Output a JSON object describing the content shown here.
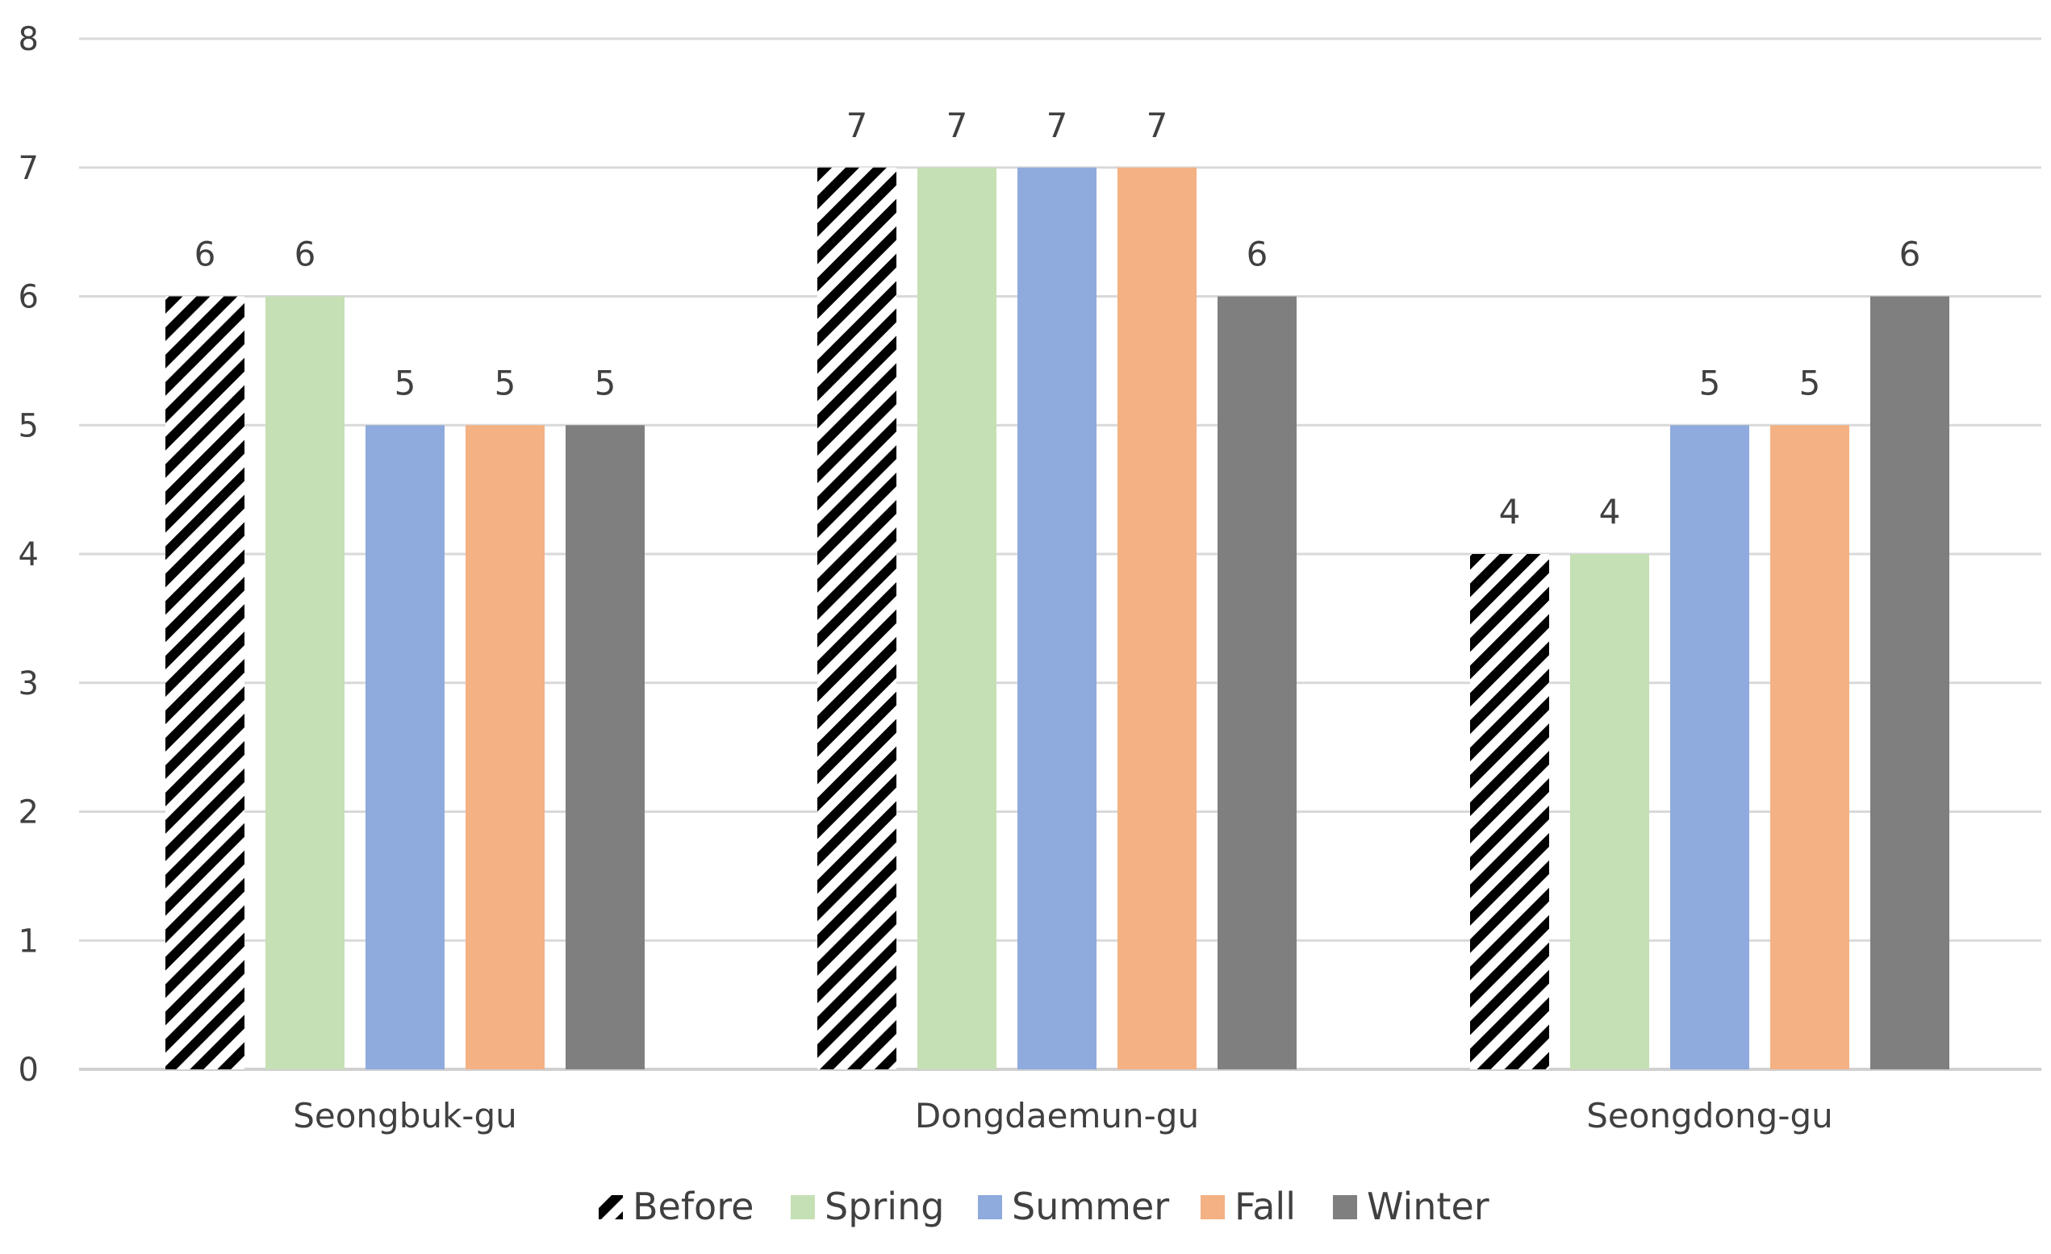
{
  "chart_data": {
    "type": "bar",
    "title": "",
    "xlabel": "",
    "ylabel": "",
    "categories": [
      "Seongbuk-gu",
      "Dongdaemun-gu",
      "Seongdong-gu"
    ],
    "series": [
      {
        "name": "Before",
        "color": "#000000",
        "pattern": "diagonal-stripes",
        "values": [
          6,
          7,
          4
        ]
      },
      {
        "name": "Spring",
        "color": "#c5e0b4",
        "values": [
          6,
          7,
          4
        ]
      },
      {
        "name": "Summer",
        "color": "#8faadc",
        "values": [
          5,
          7,
          5
        ]
      },
      {
        "name": "Fall",
        "color": "#f4b183",
        "values": [
          5,
          7,
          5
        ]
      },
      {
        "name": "Winter",
        "color": "#7f7f7f",
        "values": [
          5,
          6,
          6
        ]
      }
    ],
    "ylim": [
      0,
      8
    ],
    "yticks": [
      0,
      1,
      2,
      3,
      4,
      5,
      6,
      7,
      8
    ],
    "grid": true,
    "data_labels": true,
    "legend_position": "bottom"
  }
}
